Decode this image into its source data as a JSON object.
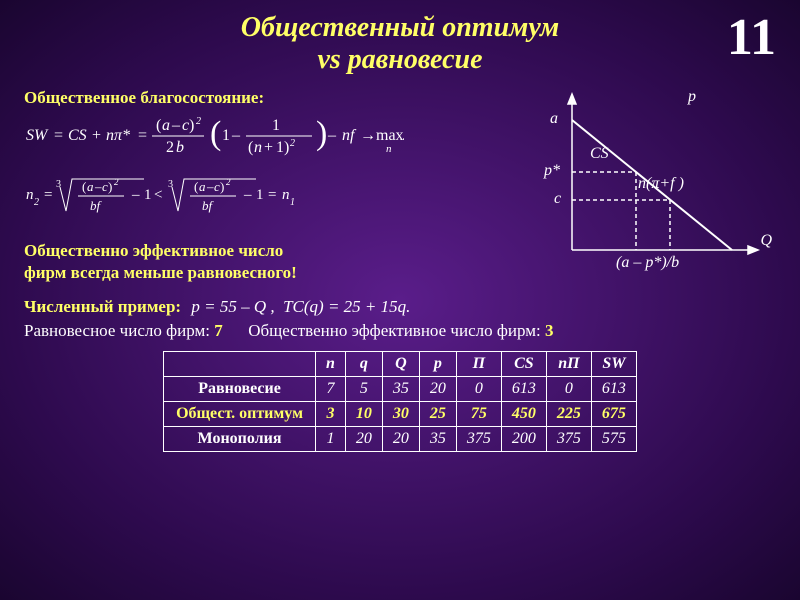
{
  "page_number": "11",
  "title_line1": "Общественный оптимум",
  "title_line2": "vs равновесие",
  "welfare_heading": "Общественное благосостояние:",
  "efficient_heading": "Общественно эффективное число фирм всегда меньше равновесного!",
  "numeric_example_label": "Численный пример:",
  "eq_firms_text": "Равновесное число фирм: ",
  "eq_firms_val": "7",
  "eff_firms_text": "Общественно эффективное число фирм: ",
  "eff_firms_val": "3",
  "table": {
    "headers": [
      "",
      "n",
      "q",
      "Q",
      "p",
      "П",
      "CS",
      "nП",
      "SW"
    ],
    "rows": [
      {
        "label": "Равновесие",
        "vals": [
          "7",
          "5",
          "35",
          "20",
          "0",
          "613",
          "0",
          "613"
        ],
        "hl": false
      },
      {
        "label": "Общест. оптимум",
        "vals": [
          "3",
          "10",
          "30",
          "25",
          "75",
          "450",
          "225",
          "675"
        ],
        "hl": true
      },
      {
        "label": "Монополия",
        "vals": [
          "1",
          "20",
          "20",
          "35",
          "375",
          "200",
          "375",
          "575"
        ],
        "hl": false
      }
    ]
  },
  "chart": {
    "labels": {
      "p": "p",
      "a": "a",
      "CS": "CS",
      "pstar": "p*",
      "npif": "n(π+f )",
      "c": "c",
      "Q": "Q",
      "axis": "(a – p*)/b"
    }
  },
  "colors": {
    "title": "#ffff66",
    "text": "#ffffff",
    "bg_center": "#5a1d8a",
    "bg_edge": "#1a0530"
  }
}
